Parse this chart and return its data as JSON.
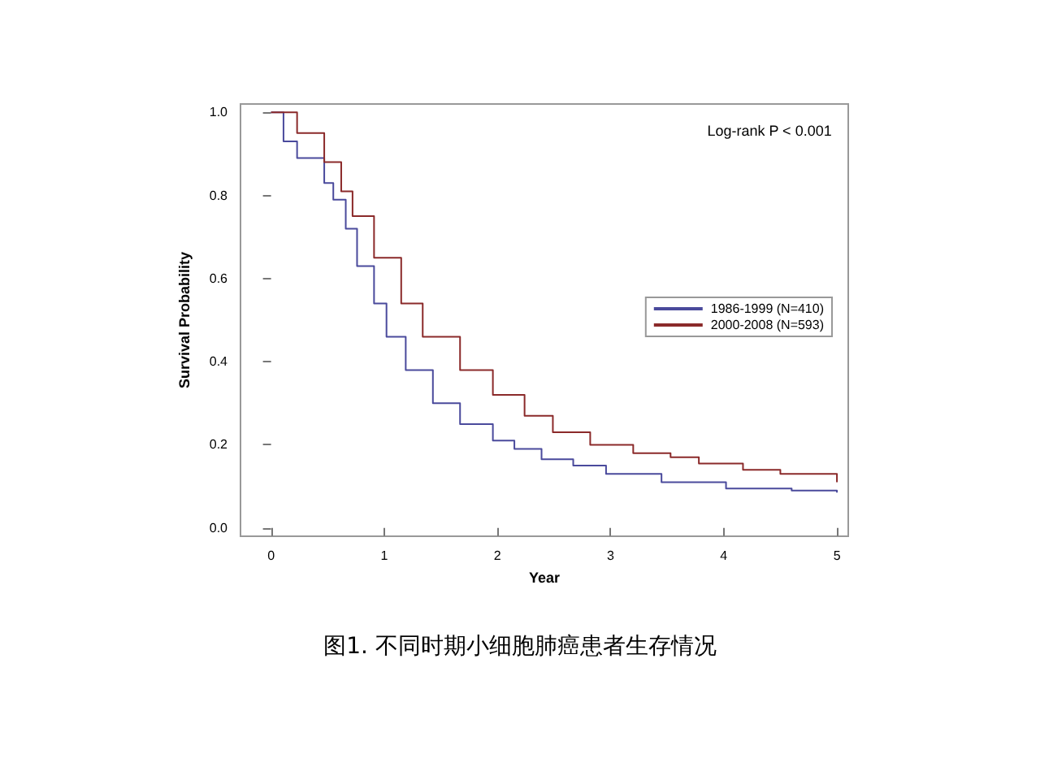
{
  "chart_data": {
    "type": "step",
    "title": "图1. 不同时期小细胞肺癌患者生存情况",
    "xlabel": "Year",
    "ylabel": "Survival Probability",
    "annotations": [
      "Log-rank P < 0.001"
    ],
    "xlim": [
      -0.27,
      5.1
    ],
    "ylim": [
      -0.02,
      1.02
    ],
    "xticks": [
      0,
      1,
      2,
      3,
      4,
      5
    ],
    "yticks": [
      {
        "value": 0,
        "label": "0.0"
      },
      {
        "value": 0.2,
        "label": "0.2"
      },
      {
        "value": 0.4,
        "label": "0.4"
      },
      {
        "value": 0.6,
        "label": "0.6"
      },
      {
        "value": 0.8,
        "label": "0.8"
      },
      {
        "value": 1,
        "label": "1.0"
      }
    ],
    "grid": false,
    "legend": "right",
    "line_style": "solid",
    "series": [
      {
        "name": "1986-1999 (N=410)",
        "color": "#4a4a9c",
        "x": [
          0,
          0.04,
          0.11,
          0.23,
          0.47,
          0.55,
          0.66,
          0.76,
          0.91,
          1.02,
          1.19,
          1.43,
          1.67,
          1.96,
          2.15,
          2.39,
          2.67,
          2.96,
          3.45,
          4.02,
          4.6,
          5
        ],
        "values": [
          1,
          1,
          0.93,
          0.89,
          0.83,
          0.79,
          0.72,
          0.63,
          0.54,
          0.46,
          0.38,
          0.3,
          0.25,
          0.21,
          0.19,
          0.165,
          0.15,
          0.13,
          0.11,
          0.095,
          0.09,
          0.085
        ]
      },
      {
        "name": "2000-2008 (N=593)",
        "color": "#8b2a2a",
        "x": [
          0,
          0.04,
          0.23,
          0.47,
          0.62,
          0.72,
          0.91,
          1.15,
          1.34,
          1.67,
          1.96,
          2.24,
          2.49,
          2.82,
          3.2,
          3.53,
          3.78,
          4.17,
          4.5,
          5
        ],
        "values": [
          1,
          1,
          0.95,
          0.88,
          0.81,
          0.75,
          0.65,
          0.54,
          0.46,
          0.38,
          0.32,
          0.27,
          0.23,
          0.2,
          0.18,
          0.17,
          0.155,
          0.14,
          0.13,
          0.11
        ]
      }
    ]
  }
}
